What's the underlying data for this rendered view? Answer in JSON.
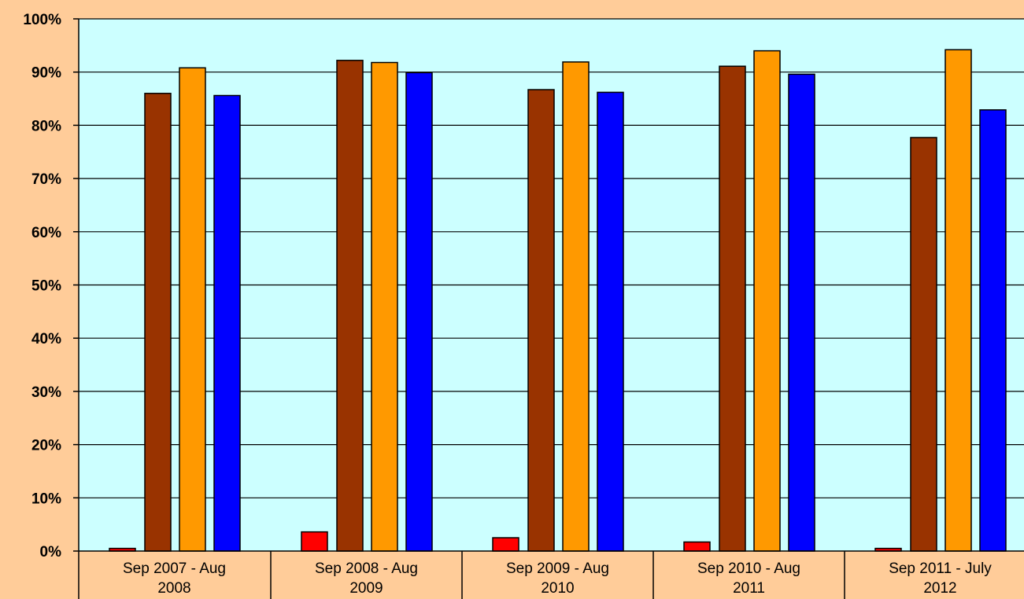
{
  "chart_data": {
    "type": "bar",
    "categories": [
      [
        "Sep 2007 - Aug",
        "2008"
      ],
      [
        "Sep 2008 - Aug",
        "2009"
      ],
      [
        "Sep 2009 - Aug",
        "2010"
      ],
      [
        "Sep 2010 - Aug",
        "2011"
      ],
      [
        "Sep 2011 - July",
        "2012"
      ]
    ],
    "series": [
      {
        "values": [
          0.5,
          3.6,
          2.5,
          1.7,
          0.5
        ],
        "color": "#FF0000"
      },
      {
        "values": [
          86.0,
          92.2,
          86.7,
          91.1,
          77.7
        ],
        "color": "#993300"
      },
      {
        "values": [
          90.8,
          91.8,
          91.9,
          94.0,
          94.2
        ],
        "color": "#FF9900"
      },
      {
        "values": [
          85.6,
          89.9,
          86.2,
          89.6,
          82.9
        ],
        "color": "#0000FF"
      }
    ],
    "yticks": [
      "0%",
      "10%",
      "20%",
      "30%",
      "40%",
      "50%",
      "60%",
      "70%",
      "80%",
      "90%",
      "100%"
    ],
    "ylim": [
      0,
      100
    ],
    "grid": true,
    "colors": {
      "background": "#FFCC99",
      "plot_background": "#CCFFFF",
      "gridline": "#000000"
    }
  }
}
